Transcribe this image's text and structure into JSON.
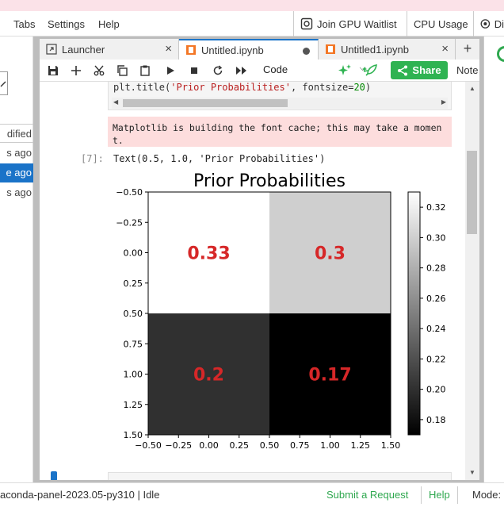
{
  "menubar": {
    "tabs": "Tabs",
    "settings": "Settings",
    "help": "Help",
    "gpu_waitlist": "Join GPU Waitlist",
    "cpu_usage": "CPU Usage",
    "partial_right": "Di"
  },
  "filebrowser": {
    "header": "dified",
    "items": [
      "s ago",
      "e ago",
      "s ago"
    ]
  },
  "tabs": [
    {
      "label": "Launcher",
      "icon": "launcher-icon"
    },
    {
      "label": "Untitled.ipynb",
      "icon": "notebook-icon",
      "active": true
    },
    {
      "label": "Untitled1.ipynb",
      "icon": "notebook-icon"
    }
  ],
  "toolbar": {
    "cell_type": "Code",
    "share": "Share",
    "notebook": "Note"
  },
  "cell": {
    "code": "plt.title('Prior Probabilities', fontsize=20)",
    "stderr": "Matplotlib is building the font cache; this may take a moment.",
    "prompt": "[7]:",
    "output": "Text(0.5, 1.0, 'Prior Probabilities')"
  },
  "chart_data": {
    "type": "heatmap",
    "title": "Prior Probabilities",
    "xticks": [
      "−0.50",
      "−0.25",
      "0.00",
      "0.25",
      "0.50",
      "0.75",
      "1.00",
      "1.25",
      "1.50"
    ],
    "yticks": [
      "−0.50",
      "−0.25",
      "0.00",
      "0.25",
      "0.50",
      "0.75",
      "1.00",
      "1.25",
      "1.50"
    ],
    "values": [
      [
        0.33,
        0.3
      ],
      [
        0.2,
        0.17
      ]
    ],
    "labels": [
      [
        "0.33",
        "0.3"
      ],
      [
        "0.2",
        "0.17"
      ]
    ],
    "colormap": "gray",
    "vmin": 0.17,
    "vmax": 0.33,
    "colorbar_ticks": [
      "0.32",
      "0.30",
      "0.28",
      "0.26",
      "0.24",
      "0.22",
      "0.20",
      "0.18"
    ],
    "colorbar_values": [
      0.32,
      0.3,
      0.28,
      0.26,
      0.24,
      0.22,
      0.2,
      0.18
    ],
    "annotation_color": "#d62728"
  },
  "statusbar": {
    "env": "aconda-panel-2023.05-py310 | Idle",
    "submit": "Submit a Request",
    "help": "Help",
    "mode": "Mode:"
  }
}
